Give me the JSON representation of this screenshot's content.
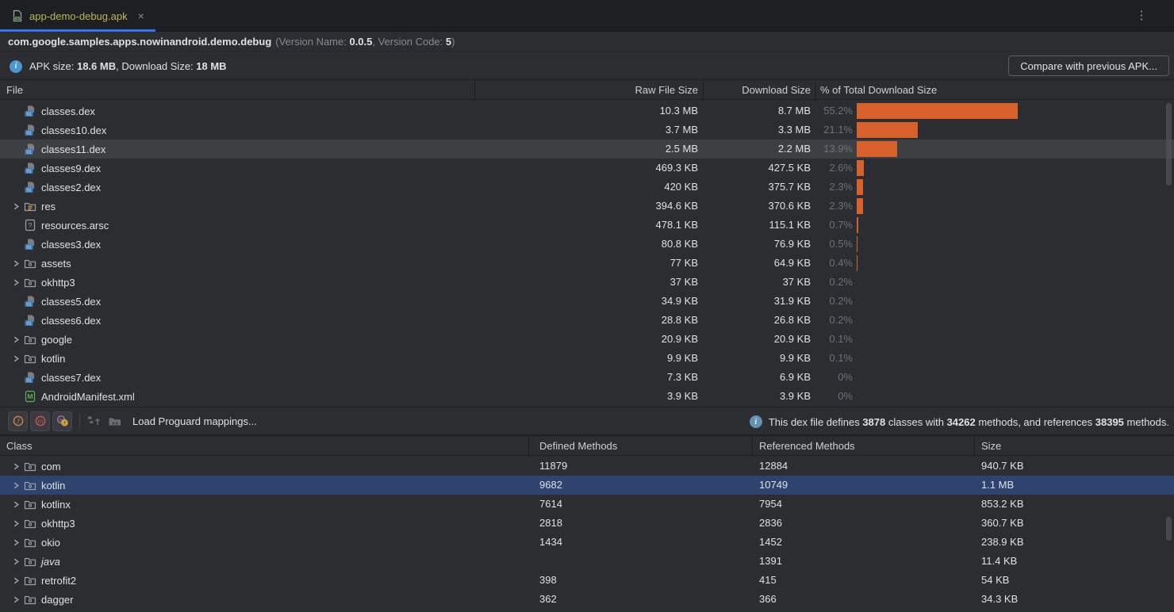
{
  "window": {
    "menu_icon": "⋮"
  },
  "tab": {
    "title": "app-demo-debug.apk",
    "close_glyph": "×"
  },
  "header": {
    "package": "com.google.samples.apps.nowinandroid.demo.debug",
    "version_prefix": "(Version Name: ",
    "version_name": "0.0.5",
    "version_mid": ", Version Code: ",
    "version_code": "5",
    "version_suffix": ")",
    "apk_size_label": "APK size: ",
    "apk_size": "18.6 MB",
    "download_size_label": ", Download Size: ",
    "download_size": "18 MB",
    "compare_button": "Compare with previous APK..."
  },
  "file_table": {
    "columns": [
      "File",
      "Raw File Size",
      "Download Size",
      "% of Total Download Size"
    ],
    "rows": [
      {
        "name": "classes.dex",
        "icon": "dex",
        "expandable": false,
        "selected": false,
        "raw": "10.3 MB",
        "download": "8.7 MB",
        "percent": "55.2%",
        "pct": 55.2
      },
      {
        "name": "classes10.dex",
        "icon": "dex",
        "expandable": false,
        "selected": false,
        "raw": "3.7 MB",
        "download": "3.3 MB",
        "percent": "21.1%",
        "pct": 21.1
      },
      {
        "name": "classes11.dex",
        "icon": "dex",
        "expandable": false,
        "selected": true,
        "raw": "2.5 MB",
        "download": "2.2 MB",
        "percent": "13.9%",
        "pct": 13.9
      },
      {
        "name": "classes9.dex",
        "icon": "dex",
        "expandable": false,
        "selected": false,
        "raw": "469.3 KB",
        "download": "427.5 KB",
        "percent": "2.6%",
        "pct": 2.6
      },
      {
        "name": "classes2.dex",
        "icon": "dex",
        "expandable": false,
        "selected": false,
        "raw": "420 KB",
        "download": "375.7 KB",
        "percent": "2.3%",
        "pct": 2.3
      },
      {
        "name": "res",
        "icon": "folder-res",
        "expandable": true,
        "selected": false,
        "raw": "394.6 KB",
        "download": "370.6 KB",
        "percent": "2.3%",
        "pct": 2.3
      },
      {
        "name": "resources.arsc",
        "icon": "arsc",
        "expandable": false,
        "selected": false,
        "raw": "478.1 KB",
        "download": "115.1 KB",
        "percent": "0.7%",
        "pct": 0.7
      },
      {
        "name": "classes3.dex",
        "icon": "dex",
        "expandable": false,
        "selected": false,
        "raw": "80.8 KB",
        "download": "76.9 KB",
        "percent": "0.5%",
        "pct": 0.5
      },
      {
        "name": "assets",
        "icon": "folder",
        "expandable": true,
        "selected": false,
        "raw": "77 KB",
        "download": "64.9 KB",
        "percent": "0.4%",
        "pct": 0.4
      },
      {
        "name": "okhttp3",
        "icon": "folder",
        "expandable": true,
        "selected": false,
        "raw": "37 KB",
        "download": "37 KB",
        "percent": "0.2%",
        "pct": 0.2
      },
      {
        "name": "classes5.dex",
        "icon": "dex",
        "expandable": false,
        "selected": false,
        "raw": "34.9 KB",
        "download": "31.9 KB",
        "percent": "0.2%",
        "pct": 0.2
      },
      {
        "name": "classes6.dex",
        "icon": "dex",
        "expandable": false,
        "selected": false,
        "raw": "28.8 KB",
        "download": "26.8 KB",
        "percent": "0.2%",
        "pct": 0.2
      },
      {
        "name": "google",
        "icon": "folder",
        "expandable": true,
        "selected": false,
        "raw": "20.9 KB",
        "download": "20.9 KB",
        "percent": "0.1%",
        "pct": 0.1
      },
      {
        "name": "kotlin",
        "icon": "folder",
        "expandable": true,
        "selected": false,
        "raw": "9.9 KB",
        "download": "9.9 KB",
        "percent": "0.1%",
        "pct": 0.1
      },
      {
        "name": "classes7.dex",
        "icon": "dex",
        "expandable": false,
        "selected": false,
        "raw": "7.3 KB",
        "download": "6.9 KB",
        "percent": "0%",
        "pct": 0
      },
      {
        "name": "AndroidManifest.xml",
        "icon": "manifest",
        "expandable": false,
        "selected": false,
        "raw": "3.9 KB",
        "download": "3.9 KB",
        "percent": "0%",
        "pct": 0
      }
    ]
  },
  "toolbar": {
    "load_mappings": "Load Proguard mappings...",
    "buttons": [
      "show-fields-filter",
      "show-methods-filter",
      "show-referenced-filter"
    ],
    "disabled_icons": [
      "deobfuscate-names",
      "load-mappings-folder"
    ]
  },
  "dex_info": {
    "prefix": "This dex file defines ",
    "classes": "3878",
    "mid1": " classes with ",
    "methods": "34262",
    "mid2": " methods, and references ",
    "ref_methods": "38395",
    "suffix": " methods."
  },
  "class_table": {
    "columns": [
      "Class",
      "Defined Methods",
      "Referenced Methods",
      "Size"
    ],
    "rows": [
      {
        "name": "com",
        "defined": "11879",
        "referenced": "12884",
        "size": "940.7 KB",
        "selected": false,
        "italic": false
      },
      {
        "name": "kotlin",
        "defined": "9682",
        "referenced": "10749",
        "size": "1.1 MB",
        "selected": true,
        "italic": false
      },
      {
        "name": "kotlinx",
        "defined": "7614",
        "referenced": "7954",
        "size": "853.2 KB",
        "selected": false,
        "italic": false
      },
      {
        "name": "okhttp3",
        "defined": "2818",
        "referenced": "2836",
        "size": "360.7 KB",
        "selected": false,
        "italic": false
      },
      {
        "name": "okio",
        "defined": "1434",
        "referenced": "1452",
        "size": "238.9 KB",
        "selected": false,
        "italic": false
      },
      {
        "name": "java",
        "defined": "",
        "referenced": "1391",
        "size": "11.4 KB",
        "selected": false,
        "italic": true
      },
      {
        "name": "retrofit2",
        "defined": "398",
        "referenced": "415",
        "size": "54 KB",
        "selected": false,
        "italic": false
      },
      {
        "name": "dagger",
        "defined": "362",
        "referenced": "366",
        "size": "34.3 KB",
        "selected": false,
        "italic": false
      }
    ]
  },
  "colors": {
    "accent_blue": "#3574f0",
    "bar_orange": "#d8602c",
    "selection_blue": "#2e436e",
    "selection_gray": "#3d4043",
    "tab_title_yellow": "#bdb65b",
    "panel_bg": "#2b2d30",
    "tabbar_bg": "#1e1f22"
  }
}
